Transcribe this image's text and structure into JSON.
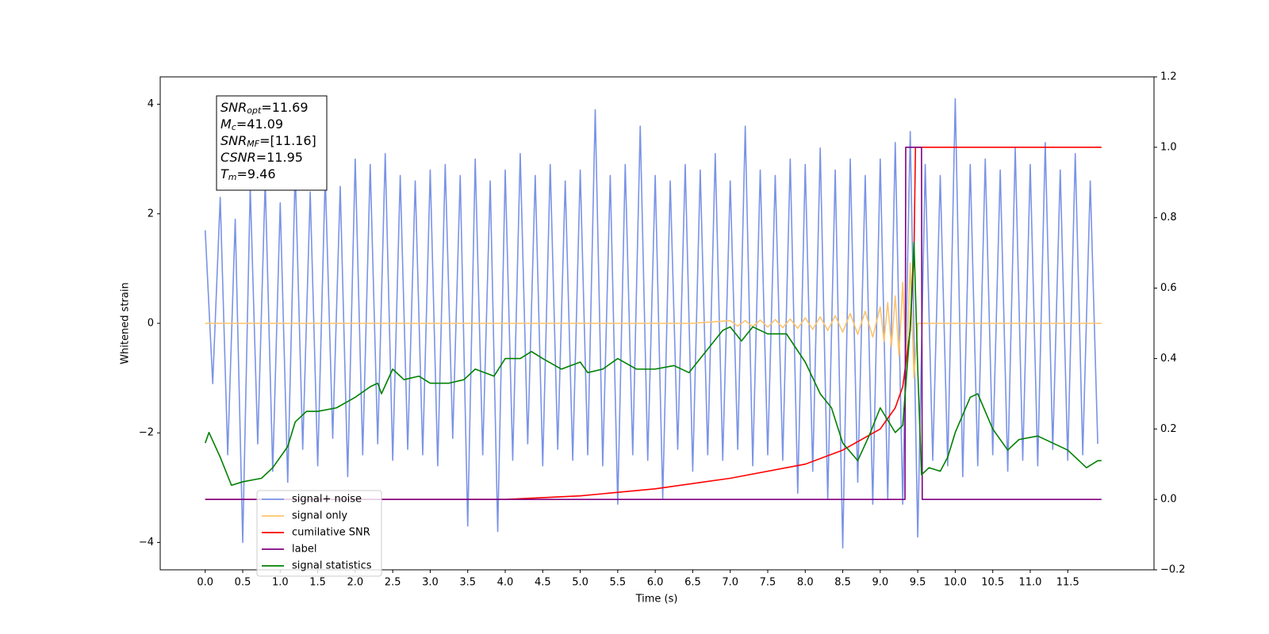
{
  "chart_data": {
    "type": "line",
    "xlabel": "Time (s)",
    "ylabel": "Whitened strain",
    "xlim": [
      -0.6,
      12.65
    ],
    "ylim": [
      -4.5,
      4.5
    ],
    "y2lim": [
      -0.2,
      1.2
    ],
    "xticks": [
      {
        "value": 0,
        "label": "0.0"
      },
      0.5,
      {
        "value": 1,
        "label": "1.0"
      },
      1.5,
      {
        "value": 2,
        "label": "2.0"
      },
      2.5,
      {
        "value": 3,
        "label": "3.0"
      },
      3.5,
      {
        "value": 4,
        "label": "4.0"
      },
      4.5,
      {
        "value": 5,
        "label": "5.0"
      },
      5.5,
      {
        "value": 6,
        "label": "6.0"
      },
      6.5,
      {
        "value": 7,
        "label": "7.0"
      },
      7.5,
      {
        "value": 8,
        "label": "8.0"
      },
      8.5,
      {
        "value": 9,
        "label": "9.0"
      },
      9.5,
      {
        "value": 10,
        "label": "10.0"
      },
      10.5,
      {
        "value": 11,
        "label": "11.0"
      },
      11.5
    ],
    "yticks": [
      {
        "value": -4,
        "label": "−4"
      },
      {
        "value": -2,
        "label": "−2"
      },
      0,
      2,
      4
    ],
    "y2ticks": [
      {
        "value": -0.2,
        "label": "−0.2"
      },
      {
        "value": 0,
        "label": "0.0"
      },
      0.2,
      0.4,
      0.6,
      0.8,
      {
        "value": 1,
        "label": "1.0"
      },
      1.2
    ],
    "legend": "lower left",
    "annotations": [
      {
        "base": "SNR",
        "sub": "opt",
        "text": "=11.69"
      },
      {
        "base": "M",
        "sub": "c",
        "text": "=41.09"
      },
      {
        "base": "SNR",
        "sub": "MF",
        "text": "=[11.16]"
      },
      {
        "base": "CSNR",
        "text": "=11.95"
      },
      {
        "base": "T",
        "sub": "m",
        "text": "=9.46"
      }
    ],
    "series": [
      {
        "name": "signal+ noise",
        "color": "#7a93e6",
        "x": [
          0,
          0.1,
          0.2,
          0.3,
          0.4,
          0.5,
          0.6,
          0.7,
          0.8,
          0.9,
          1,
          1.1,
          1.2,
          1.3,
          1.4,
          1.5,
          1.6,
          1.7,
          1.8,
          1.9,
          2,
          2.1,
          2.2,
          2.3,
          2.4,
          2.5,
          2.6,
          2.7,
          2.8,
          2.9,
          3,
          3.1,
          3.2,
          3.3,
          3.4,
          3.5,
          3.6,
          3.7,
          3.8,
          3.9,
          4,
          4.1,
          4.2,
          4.3,
          4.4,
          4.5,
          4.6,
          4.7,
          4.8,
          4.9,
          5,
          5.1,
          5.2,
          5.3,
          5.4,
          5.5,
          5.6,
          5.7,
          5.8,
          5.9,
          6,
          6.1,
          6.2,
          6.3,
          6.4,
          6.5,
          6.6,
          6.7,
          6.8,
          6.9,
          7,
          7.1,
          7.2,
          7.3,
          7.4,
          7.5,
          7.6,
          7.7,
          7.8,
          7.9,
          8,
          8.1,
          8.2,
          8.3,
          8.4,
          8.5,
          8.6,
          8.7,
          8.8,
          8.9,
          9,
          9.1,
          9.2,
          9.3,
          9.4,
          9.5,
          9.6,
          9.7,
          9.8,
          9.9,
          10,
          10.1,
          10.2,
          10.3,
          10.4,
          10.5,
          10.6,
          10.7,
          10.8,
          10.9,
          11,
          11.1,
          11.2,
          11.3,
          11.4,
          11.5,
          11.6,
          11.7,
          11.8,
          11.9
        ],
        "values": [
          1.7,
          -1.1,
          2.3,
          -2.4,
          1.9,
          -4.0,
          2.5,
          -2.2,
          2.6,
          -2.7,
          2.2,
          -2.9,
          2.8,
          -2.3,
          2.4,
          -2.6,
          2.7,
          -2.1,
          2.5,
          -2.8,
          3.0,
          -2.4,
          2.9,
          -2.2,
          3.1,
          -2.5,
          2.7,
          -2.3,
          2.6,
          -2.4,
          2.8,
          -2.6,
          2.9,
          -2.1,
          2.7,
          -3.7,
          3.0,
          -2.4,
          2.6,
          -3.8,
          2.8,
          -2.5,
          3.1,
          -2.2,
          2.7,
          -2.6,
          2.9,
          -2.3,
          2.6,
          -2.5,
          2.8,
          -2.4,
          3.9,
          -2.6,
          2.7,
          -3.3,
          2.9,
          -2.4,
          3.6,
          -2.5,
          2.7,
          -3.2,
          2.6,
          -2.3,
          2.9,
          -2.7,
          2.8,
          -2.4,
          3.1,
          -2.5,
          2.6,
          -2.3,
          3.6,
          -2.6,
          2.8,
          -2.4,
          2.7,
          -2.5,
          3.0,
          -3.1,
          2.9,
          -2.7,
          3.2,
          -3.2,
          2.8,
          -4.1,
          3.0,
          -2.9,
          2.7,
          -3.3,
          3.0,
          -3.2,
          3.3,
          -3.3,
          3.5,
          -3.9,
          2.9,
          -2.5,
          2.7,
          -2.6,
          4.1,
          -2.8,
          2.9,
          -2.6,
          3.0,
          -2.4,
          2.8,
          -2.7,
          3.2,
          -2.5,
          2.9,
          -2.6,
          3.3,
          -2.3,
          2.8,
          -2.5,
          3.1,
          -2.4,
          2.6,
          -2.2
        ]
      },
      {
        "name": "signal only",
        "color": "#fdc46b",
        "x": [
          0,
          6.5,
          7.0,
          7.1,
          7.2,
          7.3,
          7.4,
          7.5,
          7.6,
          7.7,
          7.8,
          7.9,
          8.0,
          8.1,
          8.2,
          8.3,
          8.4,
          8.5,
          8.6,
          8.7,
          8.8,
          8.9,
          9.0,
          9.05,
          9.1,
          9.15,
          9.2,
          9.25,
          9.3,
          9.35,
          9.4,
          9.45,
          9.5,
          11.95
        ],
        "values": [
          0,
          0,
          0.05,
          -0.05,
          0.05,
          -0.06,
          0.06,
          -0.07,
          0.07,
          -0.08,
          0.08,
          -0.09,
          0.1,
          -0.11,
          0.12,
          -0.13,
          0.14,
          -0.16,
          0.18,
          -0.2,
          0.22,
          -0.25,
          0.3,
          -0.33,
          0.38,
          -0.42,
          0.5,
          -0.6,
          0.75,
          -0.9,
          1.1,
          -1.0,
          0,
          0
        ]
      },
      {
        "name": "cumilative SNR",
        "color": "#ff0000",
        "axis": "y2",
        "x": [
          0,
          4.0,
          5.0,
          6.0,
          7.0,
          8.0,
          8.5,
          9.0,
          9.2,
          9.3,
          9.4,
          9.45,
          9.47,
          11.95
        ],
        "values": [
          0,
          0,
          0.01,
          0.03,
          0.06,
          0.1,
          0.14,
          0.2,
          0.26,
          0.32,
          0.48,
          0.7,
          1.0,
          1.0
        ]
      },
      {
        "name": "label",
        "color": "#800080",
        "axis": "y2",
        "x": [
          0,
          9.33,
          9.34,
          9.55,
          9.56,
          11.95
        ],
        "values": [
          0,
          0,
          1,
          1,
          0,
          0
        ]
      },
      {
        "name": "signal statistics",
        "color": "#008000",
        "axis": "y2",
        "x": [
          0,
          0.05,
          0.2,
          0.35,
          0.5,
          0.75,
          0.9,
          1.1,
          1.2,
          1.35,
          1.5,
          1.75,
          2.0,
          2.2,
          2.3,
          2.35,
          2.5,
          2.65,
          2.85,
          3.0,
          3.25,
          3.45,
          3.6,
          3.85,
          4.0,
          4.2,
          4.35,
          4.5,
          4.75,
          5.0,
          5.1,
          5.3,
          5.5,
          5.75,
          6.0,
          6.25,
          6.45,
          6.6,
          6.75,
          6.9,
          7.0,
          7.15,
          7.3,
          7.5,
          7.75,
          8.0,
          8.2,
          8.35,
          8.5,
          8.7,
          8.85,
          9.0,
          9.2,
          9.3,
          9.4,
          9.45,
          9.5,
          9.55,
          9.65,
          9.8,
          9.9,
          10.0,
          10.2,
          10.3,
          10.5,
          10.7,
          10.85,
          11.1,
          11.3,
          11.5,
          11.75,
          11.9,
          11.95
        ],
        "values": [
          0.16,
          0.19,
          0.12,
          0.04,
          0.05,
          0.06,
          0.09,
          0.15,
          0.22,
          0.25,
          0.25,
          0.26,
          0.29,
          0.32,
          0.33,
          0.3,
          0.37,
          0.34,
          0.35,
          0.33,
          0.33,
          0.34,
          0.37,
          0.35,
          0.4,
          0.4,
          0.42,
          0.4,
          0.37,
          0.39,
          0.36,
          0.37,
          0.4,
          0.37,
          0.37,
          0.38,
          0.36,
          0.4,
          0.44,
          0.48,
          0.49,
          0.45,
          0.49,
          0.47,
          0.47,
          0.39,
          0.3,
          0.26,
          0.16,
          0.11,
          0.18,
          0.26,
          0.19,
          0.21,
          0.49,
          0.73,
          0.37,
          0.07,
          0.09,
          0.08,
          0.12,
          0.19,
          0.29,
          0.3,
          0.2,
          0.14,
          0.17,
          0.18,
          0.16,
          0.14,
          0.09,
          0.11,
          0.11
        ]
      }
    ]
  }
}
